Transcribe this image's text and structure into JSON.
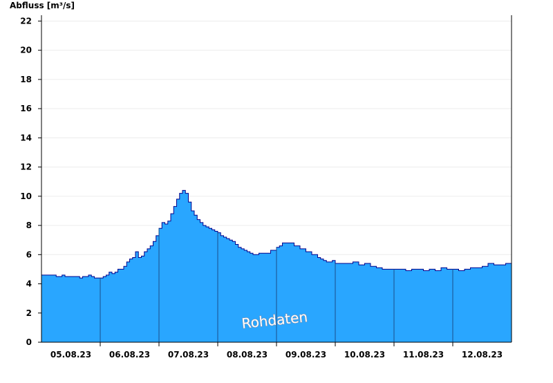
{
  "chart_data": {
    "type": "area",
    "ylabel": "Abfluss [m³/s]",
    "watermark": "Rohdaten",
    "ylim": [
      0,
      22.4
    ],
    "yticks": [
      0,
      2,
      4,
      6,
      8,
      10,
      12,
      14,
      16,
      18,
      20,
      22
    ],
    "xlim_days": [
      4.5,
      12.5
    ],
    "date_labels": [
      "05.08.23",
      "06.08.23",
      "07.08.23",
      "08.08.23",
      "09.08.23",
      "10.08.23",
      "11.08.23",
      "12.08.23"
    ],
    "grid": true,
    "series": [
      {
        "color": "#29a6ff",
        "line_color": "#00008b",
        "x_days": [
          4.5,
          4.55,
          4.75,
          4.8,
          4.85,
          4.9,
          5.0,
          5.1,
          5.15,
          5.2,
          5.3,
          5.35,
          5.4,
          5.5,
          5.55,
          5.6,
          5.65,
          5.7,
          5.75,
          5.8,
          5.85,
          5.9,
          5.95,
          6.0,
          6.05,
          6.1,
          6.15,
          6.2,
          6.25,
          6.3,
          6.35,
          6.4,
          6.45,
          6.5,
          6.55,
          6.6,
          6.65,
          6.7,
          6.75,
          6.8,
          6.85,
          6.9,
          6.95,
          7.0,
          7.05,
          7.1,
          7.15,
          7.2,
          7.25,
          7.3,
          7.35,
          7.4,
          7.45,
          7.5,
          7.55,
          7.6,
          7.65,
          7.7,
          7.75,
          7.8,
          7.85,
          7.9,
          7.95,
          8.0,
          8.05,
          8.1,
          8.2,
          8.3,
          8.4,
          8.5,
          8.55,
          8.6,
          8.7,
          8.8,
          8.9,
          9.0,
          9.1,
          9.2,
          9.25,
          9.3,
          9.35,
          9.4,
          9.45,
          9.5,
          9.6,
          9.7,
          9.8,
          9.9,
          10.0,
          10.1,
          10.2,
          10.3,
          10.4,
          10.5,
          10.6,
          10.7,
          10.8,
          10.9,
          11.0,
          11.1,
          11.2,
          11.3,
          11.4,
          11.5,
          11.6,
          11.7,
          11.8,
          11.9,
          12.0,
          12.1,
          12.2,
          12.3,
          12.4,
          12.45,
          12.5
        ],
        "values": [
          4.6,
          4.6,
          4.5,
          4.5,
          4.6,
          4.5,
          4.5,
          4.5,
          4.4,
          4.5,
          4.6,
          4.5,
          4.4,
          4.4,
          4.5,
          4.6,
          4.8,
          4.7,
          4.8,
          5.0,
          5.0,
          5.2,
          5.5,
          5.7,
          5.8,
          6.2,
          5.8,
          5.9,
          6.2,
          6.4,
          6.6,
          6.9,
          7.3,
          7.8,
          8.2,
          8.1,
          8.3,
          8.8,
          9.3,
          9.8,
          10.2,
          10.4,
          10.2,
          9.6,
          9.0,
          8.7,
          8.4,
          8.2,
          8.0,
          7.9,
          7.8,
          7.7,
          7.6,
          7.5,
          7.3,
          7.2,
          7.1,
          7.0,
          6.9,
          6.7,
          6.5,
          6.4,
          6.3,
          6.2,
          6.1,
          6.0,
          6.1,
          6.1,
          6.3,
          6.5,
          6.6,
          6.8,
          6.8,
          6.6,
          6.4,
          6.2,
          6.0,
          5.8,
          5.7,
          5.6,
          5.5,
          5.5,
          5.6,
          5.4,
          5.4,
          5.4,
          5.5,
          5.3,
          5.4,
          5.2,
          5.1,
          5.0,
          5.0,
          5.0,
          5.0,
          4.9,
          5.0,
          5.0,
          4.9,
          5.0,
          4.9,
          5.1,
          5.0,
          5.0,
          4.9,
          5.0,
          5.1,
          5.1,
          5.2,
          5.4,
          5.3,
          5.3,
          5.4,
          5.4,
          5.4
        ]
      }
    ]
  }
}
